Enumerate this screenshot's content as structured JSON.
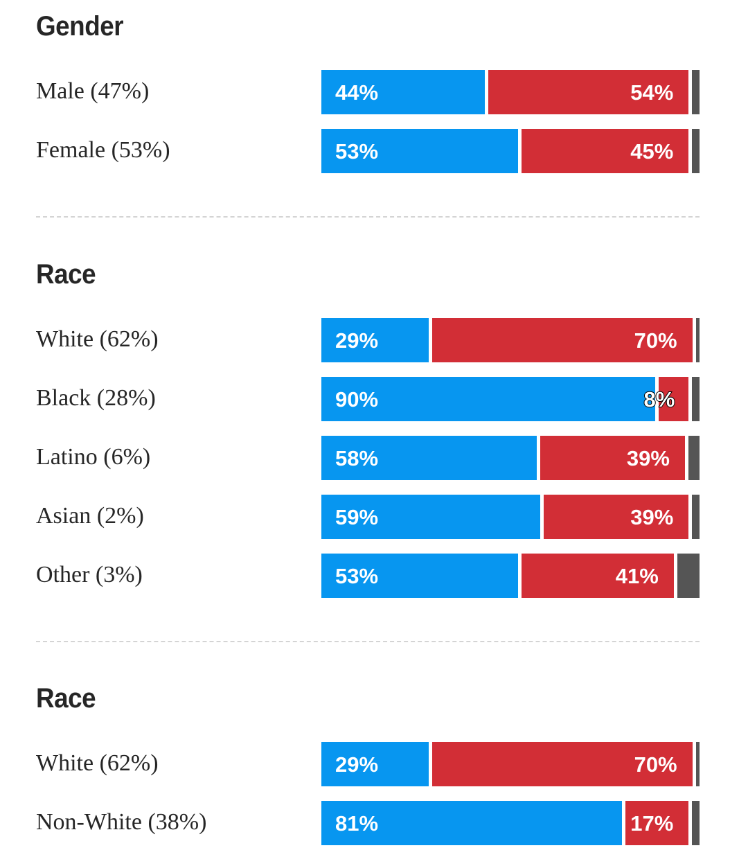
{
  "chart_data": [
    {
      "type": "bar",
      "orientation": "horizontal",
      "stacked": true,
      "title": "Gender",
      "categories": [
        "Male (47%)",
        "Female (53%)"
      ],
      "series": [
        {
          "values": [
            44,
            53
          ],
          "labels": [
            "44%",
            "53%"
          ],
          "color": "#0796f0"
        },
        {
          "values": [
            54,
            45
          ],
          "labels": [
            "54%",
            "45%"
          ],
          "color": "#d22e36"
        },
        {
          "values": [
            2,
            2
          ],
          "color": "#555555"
        }
      ],
      "xlim": [
        0,
        100
      ],
      "grid": false,
      "legend": "none"
    },
    {
      "type": "bar",
      "orientation": "horizontal",
      "stacked": true,
      "title": "Race",
      "categories": [
        "White (62%)",
        "Black (28%)",
        "Latino (6%)",
        "Asian (2%)",
        "Other (3%)"
      ],
      "series": [
        {
          "values": [
            29,
            90,
            58,
            59,
            53
          ],
          "labels": [
            "29%",
            "90%",
            "58%",
            "59%",
            "53%"
          ],
          "color": "#0796f0"
        },
        {
          "values": [
            70,
            8,
            39,
            39,
            41
          ],
          "labels": [
            "70%",
            "8%",
            "39%",
            "39%",
            "41%"
          ],
          "color": "#d22e36"
        },
        {
          "values": [
            1,
            2,
            3,
            2,
            6
          ],
          "color": "#555555"
        }
      ],
      "xlim": [
        0,
        100
      ],
      "grid": false,
      "legend": "none"
    },
    {
      "type": "bar",
      "orientation": "horizontal",
      "stacked": true,
      "title": "Race",
      "categories": [
        "White (62%)",
        "Non-White (38%)"
      ],
      "series": [
        {
          "values": [
            29,
            81
          ],
          "labels": [
            "29%",
            "81%"
          ],
          "color": "#0796f0"
        },
        {
          "values": [
            70,
            17
          ],
          "labels": [
            "70%",
            "17%"
          ],
          "color": "#d22e36"
        },
        {
          "values": [
            1,
            2
          ],
          "color": "#555555"
        }
      ],
      "xlim": [
        0,
        100
      ],
      "grid": false,
      "legend": "none"
    }
  ]
}
